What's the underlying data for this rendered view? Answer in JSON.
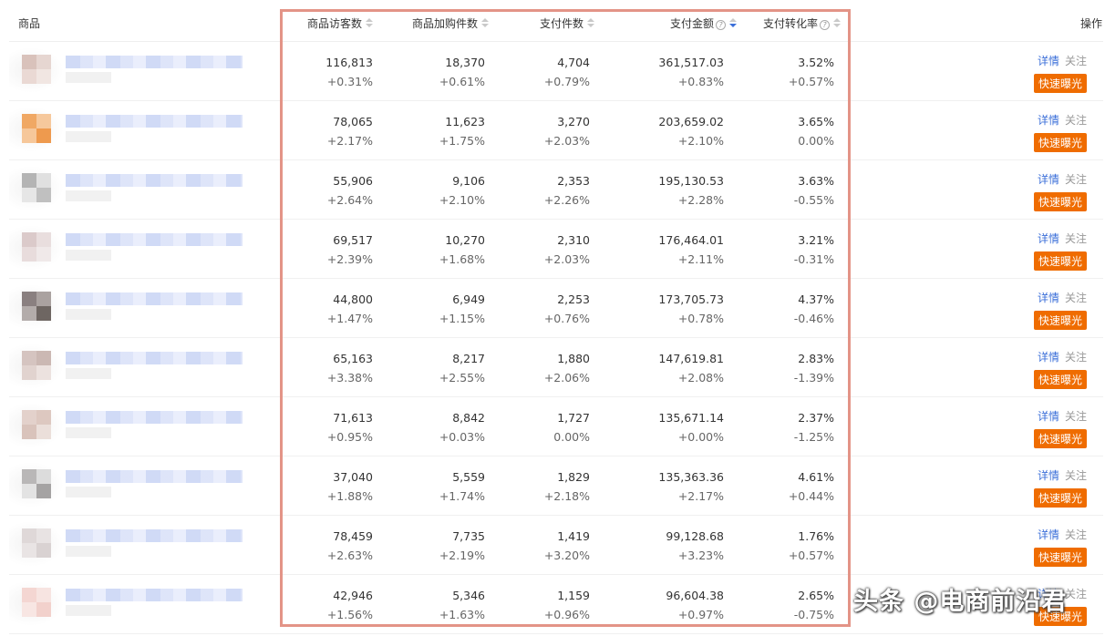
{
  "header": {
    "product": "商品",
    "visitors": "商品访客数",
    "add_cart": "商品加购件数",
    "pay_items": "支付件数",
    "pay_amount": "支付金额",
    "conversion": "支付转化率",
    "operations": "操作"
  },
  "actions": {
    "detail": "详情",
    "follow": "关注",
    "boost": "快速曝光"
  },
  "rows": [
    {
      "visitors": "116,813",
      "visitors_chg": "+0.31%",
      "add_cart": "18,370",
      "add_cart_chg": "+0.61%",
      "pay_items": "4,704",
      "pay_items_chg": "+0.79%",
      "pay_amount": "361,517.03",
      "pay_amount_chg": "+0.83%",
      "conversion": "3.52%",
      "conversion_chg": "+0.57%"
    },
    {
      "visitors": "78,065",
      "visitors_chg": "+2.17%",
      "add_cart": "11,623",
      "add_cart_chg": "+1.75%",
      "pay_items": "3,270",
      "pay_items_chg": "+2.03%",
      "pay_amount": "203,659.02",
      "pay_amount_chg": "+2.10%",
      "conversion": "3.65%",
      "conversion_chg": "0.00%"
    },
    {
      "visitors": "55,906",
      "visitors_chg": "+2.64%",
      "add_cart": "9,106",
      "add_cart_chg": "+2.10%",
      "pay_items": "2,353",
      "pay_items_chg": "+2.26%",
      "pay_amount": "195,130.53",
      "pay_amount_chg": "+2.28%",
      "conversion": "3.63%",
      "conversion_chg": "-0.55%"
    },
    {
      "visitors": "69,517",
      "visitors_chg": "+2.39%",
      "add_cart": "10,270",
      "add_cart_chg": "+1.68%",
      "pay_items": "2,310",
      "pay_items_chg": "+2.03%",
      "pay_amount": "176,464.01",
      "pay_amount_chg": "+2.11%",
      "conversion": "3.21%",
      "conversion_chg": "-0.31%"
    },
    {
      "visitors": "44,800",
      "visitors_chg": "+1.47%",
      "add_cart": "6,949",
      "add_cart_chg": "+1.15%",
      "pay_items": "2,253",
      "pay_items_chg": "+0.76%",
      "pay_amount": "173,705.73",
      "pay_amount_chg": "+0.78%",
      "conversion": "4.37%",
      "conversion_chg": "-0.46%"
    },
    {
      "visitors": "65,163",
      "visitors_chg": "+3.38%",
      "add_cart": "8,217",
      "add_cart_chg": "+2.55%",
      "pay_items": "1,880",
      "pay_items_chg": "+2.06%",
      "pay_amount": "147,619.81",
      "pay_amount_chg": "+2.08%",
      "conversion": "2.83%",
      "conversion_chg": "-1.39%"
    },
    {
      "visitors": "71,613",
      "visitors_chg": "+0.95%",
      "add_cart": "8,842",
      "add_cart_chg": "+0.03%",
      "pay_items": "1,727",
      "pay_items_chg": "0.00%",
      "pay_amount": "135,671.14",
      "pay_amount_chg": "+0.00%",
      "conversion": "2.37%",
      "conversion_chg": "-1.25%"
    },
    {
      "visitors": "37,040",
      "visitors_chg": "+1.88%",
      "add_cart": "5,559",
      "add_cart_chg": "+1.74%",
      "pay_items": "1,829",
      "pay_items_chg": "+2.18%",
      "pay_amount": "135,363.36",
      "pay_amount_chg": "+2.17%",
      "conversion": "4.61%",
      "conversion_chg": "+0.44%"
    },
    {
      "visitors": "78,459",
      "visitors_chg": "+2.63%",
      "add_cart": "7,735",
      "add_cart_chg": "+2.19%",
      "pay_items": "1,419",
      "pay_items_chg": "+3.20%",
      "pay_amount": "99,128.68",
      "pay_amount_chg": "+3.23%",
      "conversion": "1.76%",
      "conversion_chg": "+0.57%"
    },
    {
      "visitors": "42,946",
      "visitors_chg": "+1.56%",
      "add_cart": "5,346",
      "add_cart_chg": "+1.63%",
      "pay_items": "1,159",
      "pay_items_chg": "+0.96%",
      "pay_amount": "96,604.38",
      "pay_amount_chg": "+0.97%",
      "conversion": "2.65%",
      "conversion_chg": "-0.75%"
    }
  ],
  "thumbnails": [
    [
      "#d9c2bb",
      "#e6d6d1",
      "#ead9d4",
      "#f1e6e2"
    ],
    [
      "#f0a864",
      "#f6c89c",
      "#f6c79a",
      "#ee9a4e"
    ],
    [
      "#b4b4b4",
      "#e0e0e0",
      "#e6e6e6",
      "#c0c0c0"
    ],
    [
      "#dbcaca",
      "#e9dede",
      "#e8dcdc",
      "#f0e9e9"
    ],
    [
      "#8a8080",
      "#aaa2a0",
      "#b3acaa",
      "#6e6662"
    ],
    [
      "#d5c4c0",
      "#cbb8b3",
      "#e1d3cf",
      "#ece2df"
    ],
    [
      "#e3d1cb",
      "#ddc8c0",
      "#d9c3bb",
      "#ebdfda"
    ],
    [
      "#b9b7b7",
      "#dcdcdc",
      "#e3e3e3",
      "#a5a3a3"
    ],
    [
      "#dfd8d8",
      "#e8e3e3",
      "#e9e4e4",
      "#d9d2d2"
    ],
    [
      "#f4d6d2",
      "#f7e4e1",
      "#f8e6e3",
      "#f2d1cc"
    ]
  ],
  "watermark": "头条 @电商前沿君",
  "colors": {
    "accent_link": "#3b6fd9",
    "boost_button": "#ef6c00",
    "highlight_border": "#e39487"
  }
}
